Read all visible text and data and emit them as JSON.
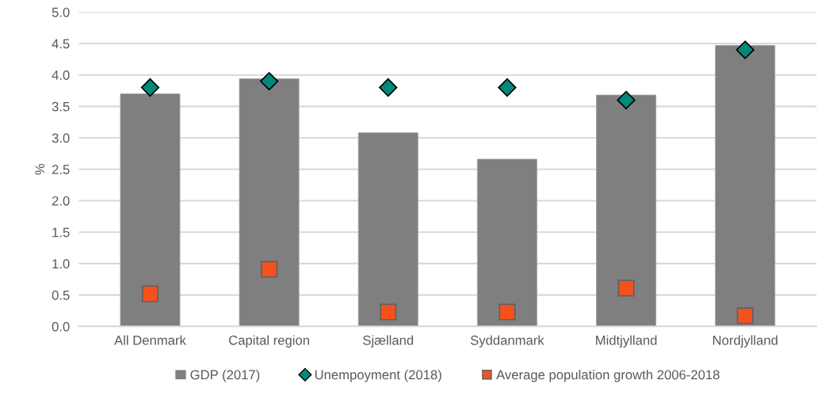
{
  "chart_data": {
    "type": "bar",
    "ylabel": "%",
    "categories": [
      "All Denmark",
      "Capital region",
      "Sjælland",
      "Syddanmark",
      "Midtjylland",
      "Nordjylland"
    ],
    "series": [
      {
        "name": "GDP (2017)",
        "color": "#7f7f7f",
        "values": [
          3.7,
          3.94,
          3.08,
          2.66,
          3.68,
          4.47
        ]
      },
      {
        "name": "Unempoyment (2018)",
        "type": "scatter",
        "marker": "diamond",
        "color": "#00897b",
        "values": [
          3.8,
          3.9,
          3.8,
          3.8,
          3.6,
          4.4
        ]
      },
      {
        "name": "Average population growth 2006-2018",
        "type": "scatter",
        "marker": "square",
        "color": "#f4511e",
        "values": [
          0.52,
          0.91,
          0.23,
          0.23,
          0.61,
          0.17
        ]
      }
    ],
    "ylim": [
      0,
      5.0
    ],
    "yticks": [
      {
        "value": 0,
        "label": "0.0"
      },
      {
        "value": 0.5,
        "label": "0.5"
      },
      {
        "value": 1.0,
        "label": "1.0"
      },
      {
        "value": 1.5,
        "label": "1.5"
      },
      {
        "value": 2.0,
        "label": "2.0"
      },
      {
        "value": 2.5,
        "label": "2.5"
      },
      {
        "value": 3.0,
        "label": "3.0"
      },
      {
        "value": 3.5,
        "label": "3.5"
      },
      {
        "value": 4.0,
        "label": "4.0"
      },
      {
        "value": 4.5,
        "label": "4.5"
      },
      {
        "value": 5.0,
        "label": "5.0"
      }
    ],
    "grid": "y",
    "legend": "bottom"
  }
}
